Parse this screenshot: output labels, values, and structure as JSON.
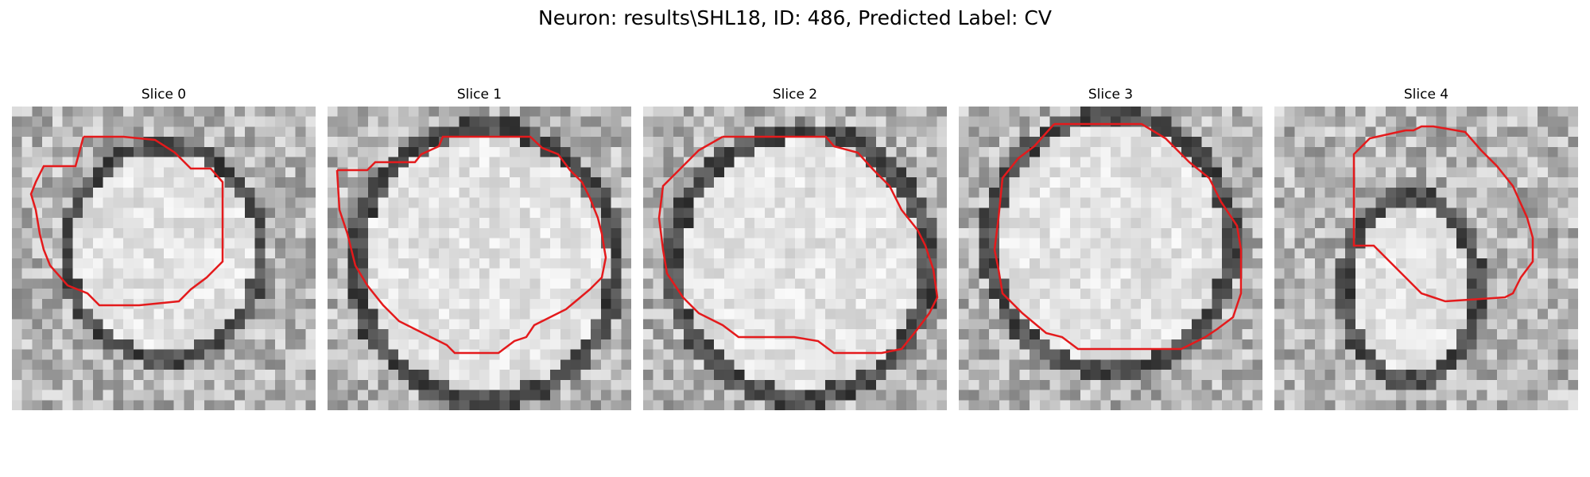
{
  "figure": {
    "title": "Neuron: results\\SHL18, ID: 486, Predicted Label: CV"
  },
  "outline_color": "#e41a1c",
  "panels": [
    {
      "title": "Slice 0"
    },
    {
      "title": "Slice 1"
    },
    {
      "title": "Slice 2"
    },
    {
      "title": "Slice 3"
    },
    {
      "title": "Slice 4"
    }
  ]
}
